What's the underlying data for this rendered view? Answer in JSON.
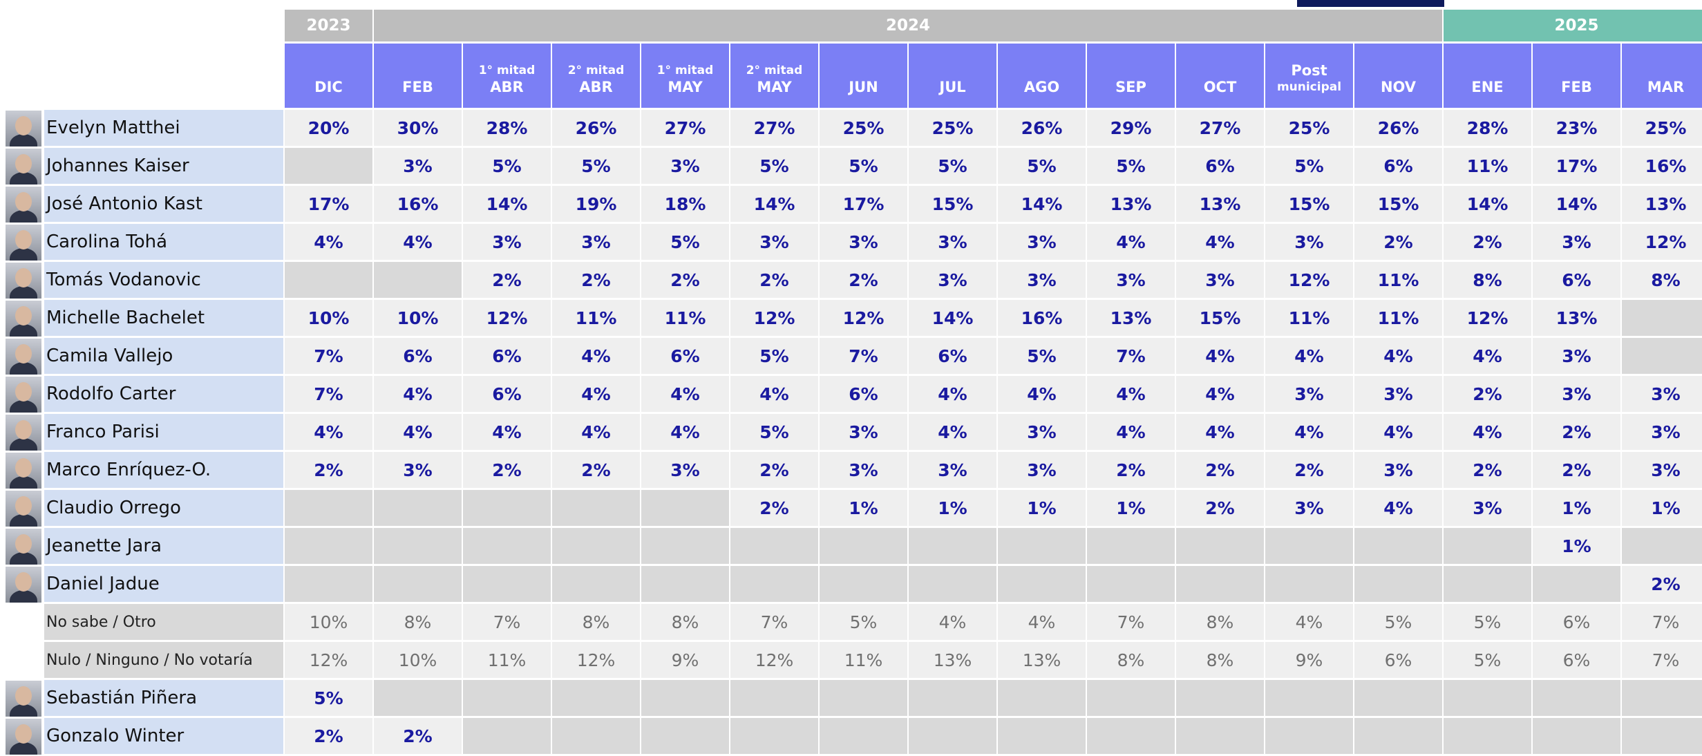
{
  "table": {
    "years": [
      {
        "label": "2023",
        "span": 1,
        "color": "#bdbdbd"
      },
      {
        "label": "2024",
        "span": 12,
        "color": "#bdbdbd"
      },
      {
        "label": "2025",
        "span": 3,
        "color": "#72c2b0"
      }
    ],
    "header_color": "#7b7ff5",
    "columns": [
      [
        "DIC"
      ],
      [
        "FEB"
      ],
      [
        "1° mitad",
        "ABR"
      ],
      [
        "2° mitad",
        "ABR"
      ],
      [
        "1° mitad",
        "MAY"
      ],
      [
        "2° mitad",
        "MAY"
      ],
      [
        "JUN"
      ],
      [
        "JUL"
      ],
      [
        "AGO"
      ],
      [
        "SEP"
      ],
      [
        "OCT"
      ],
      [
        "Post",
        "municipal"
      ],
      [
        "NOV"
      ],
      [
        "ENE"
      ],
      [
        "FEB"
      ],
      [
        "MAR"
      ]
    ],
    "candidate_rows": [
      {
        "name": "Evelyn Matthei",
        "cells": [
          "20%",
          "30%",
          "28%",
          "26%",
          "27%",
          "27%",
          "25%",
          "25%",
          "26%",
          "29%",
          "27%",
          "25%",
          "26%",
          "28%",
          "23%",
          "25%"
        ]
      },
      {
        "name": "Johannes Kaiser",
        "cells": [
          null,
          "3%",
          "5%",
          "5%",
          "3%",
          "5%",
          "5%",
          "5%",
          "5%",
          "5%",
          "6%",
          "5%",
          "6%",
          "11%",
          "17%",
          "16%"
        ]
      },
      {
        "name": "José Antonio Kast",
        "cells": [
          "17%",
          "16%",
          "14%",
          "19%",
          "18%",
          "14%",
          "17%",
          "15%",
          "14%",
          "13%",
          "13%",
          "15%",
          "15%",
          "14%",
          "14%",
          "13%"
        ]
      },
      {
        "name": "Carolina Tohá",
        "cells": [
          "4%",
          "4%",
          "3%",
          "3%",
          "5%",
          "3%",
          "3%",
          "3%",
          "3%",
          "4%",
          "4%",
          "3%",
          "2%",
          "2%",
          "3%",
          "12%"
        ]
      },
      {
        "name": "Tomás Vodanovic",
        "cells": [
          null,
          null,
          "2%",
          "2%",
          "2%",
          "2%",
          "2%",
          "3%",
          "3%",
          "3%",
          "3%",
          "12%",
          "11%",
          "8%",
          "6%",
          "8%"
        ]
      },
      {
        "name": "Michelle Bachelet",
        "cells": [
          "10%",
          "10%",
          "12%",
          "11%",
          "11%",
          "12%",
          "12%",
          "14%",
          "16%",
          "13%",
          "15%",
          "11%",
          "11%",
          "12%",
          "13%",
          null
        ]
      },
      {
        "name": "Camila Vallejo",
        "cells": [
          "7%",
          "6%",
          "6%",
          "4%",
          "6%",
          "5%",
          "7%",
          "6%",
          "5%",
          "7%",
          "4%",
          "4%",
          "4%",
          "4%",
          "3%",
          null
        ]
      },
      {
        "name": "Rodolfo Carter",
        "cells": [
          "7%",
          "4%",
          "6%",
          "4%",
          "4%",
          "4%",
          "6%",
          "4%",
          "4%",
          "4%",
          "4%",
          "3%",
          "3%",
          "2%",
          "3%",
          "3%"
        ]
      },
      {
        "name": "Franco Parisi",
        "cells": [
          "4%",
          "4%",
          "4%",
          "4%",
          "4%",
          "5%",
          "3%",
          "4%",
          "3%",
          "4%",
          "4%",
          "4%",
          "4%",
          "4%",
          "2%",
          "3%"
        ]
      },
      {
        "name": "Marco Enríquez-O.",
        "cells": [
          "2%",
          "3%",
          "2%",
          "2%",
          "3%",
          "2%",
          "3%",
          "3%",
          "3%",
          "2%",
          "2%",
          "2%",
          "3%",
          "2%",
          "2%",
          "3%"
        ]
      },
      {
        "name": "Claudio Orrego",
        "cells": [
          null,
          null,
          null,
          null,
          null,
          "2%",
          "1%",
          "1%",
          "1%",
          "1%",
          "2%",
          "3%",
          "4%",
          "3%",
          "1%",
          "1%"
        ]
      },
      {
        "name": "Jeanette Jara",
        "cells": [
          null,
          null,
          null,
          null,
          null,
          null,
          null,
          null,
          null,
          null,
          null,
          null,
          null,
          null,
          "1%",
          null
        ]
      },
      {
        "name": "Daniel Jadue",
        "cells": [
          null,
          null,
          null,
          null,
          null,
          null,
          null,
          null,
          null,
          null,
          null,
          null,
          null,
          null,
          null,
          "2%"
        ]
      }
    ],
    "response_rows": [
      {
        "name": "No sabe / Otro",
        "cells": [
          "10%",
          "8%",
          "7%",
          "8%",
          "8%",
          "7%",
          "5%",
          "4%",
          "4%",
          "7%",
          "8%",
          "4%",
          "5%",
          "5%",
          "6%",
          "7%"
        ]
      },
      {
        "name": "Nulo / Ninguno / No votaría",
        "cells": [
          "12%",
          "10%",
          "11%",
          "12%",
          "9%",
          "12%",
          "11%",
          "13%",
          "13%",
          "8%",
          "8%",
          "9%",
          "6%",
          "5%",
          "6%",
          "7%"
        ]
      }
    ],
    "former_candidate_rows": [
      {
        "name": "Sebastián Piñera",
        "cells": [
          "5%",
          null,
          null,
          null,
          null,
          null,
          null,
          null,
          null,
          null,
          null,
          null,
          null,
          null,
          null,
          null
        ]
      },
      {
        "name": "Gonzalo Winter",
        "cells": [
          "2%",
          "2%",
          null,
          null,
          null,
          null,
          null,
          null,
          null,
          null,
          null,
          null,
          null,
          null,
          null,
          null
        ]
      }
    ]
  }
}
